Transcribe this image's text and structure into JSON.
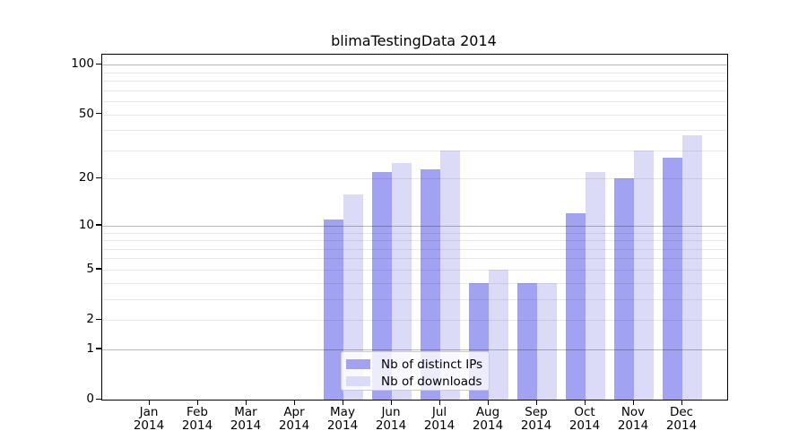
{
  "chart_data": {
    "type": "bar",
    "title": "blimaTestingData 2014",
    "categories": [
      "Jan 2014",
      "Feb 2014",
      "Mar 2014",
      "Apr 2014",
      "May 2014",
      "Jun 2014",
      "Jul 2014",
      "Aug 2014",
      "Sep 2014",
      "Oct 2014",
      "Nov 2014",
      "Dec 2014"
    ],
    "series": [
      {
        "name": "Nb of distinct IPs",
        "color": "#a2a2f2",
        "values": [
          0,
          0,
          0,
          0,
          11,
          22,
          23,
          4,
          4,
          12,
          20,
          27
        ]
      },
      {
        "name": "Nb of downloads",
        "color": "#dbdbf8",
        "values": [
          0,
          0,
          0,
          0,
          16,
          25,
          30,
          5,
          4,
          22,
          30,
          37
        ]
      }
    ],
    "y_axis": {
      "scale": "log1p",
      "ylim": [
        0,
        115
      ],
      "tick_labels": [
        "0",
        "1",
        "2",
        "5",
        "10",
        "20",
        "50",
        "100"
      ],
      "tick_values": [
        0,
        1,
        2,
        5,
        10,
        20,
        50,
        100
      ],
      "major_gridlines": [
        1,
        10,
        100
      ],
      "minor_gridlines": [
        2,
        3,
        4,
        5,
        6,
        7,
        8,
        9,
        20,
        30,
        40,
        50,
        60,
        70,
        80,
        90
      ]
    },
    "x_axis": {
      "tick_year_on_second_line": true
    },
    "grid": "horizontal",
    "legend": {
      "position": "inside-bottom-center"
    },
    "colors": {
      "spine": "#000000",
      "background": "#ffffff"
    }
  }
}
